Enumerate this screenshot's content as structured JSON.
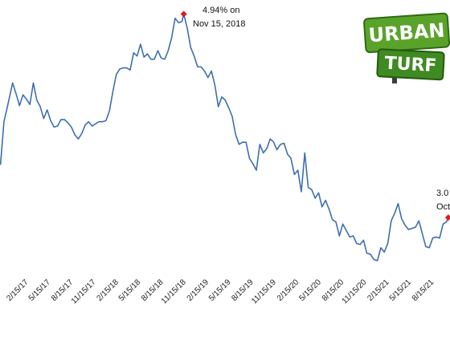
{
  "chart_data": {
    "type": "line",
    "x": [
      "2016-11-03",
      "2016-11-17",
      "2016-12-01",
      "2016-12-22",
      "2017-01-05",
      "2017-01-19",
      "2017-02-02",
      "2017-02-16",
      "2017-03-02",
      "2017-03-16",
      "2017-03-30",
      "2017-04-13",
      "2017-04-27",
      "2017-05-11",
      "2017-05-25",
      "2017-06-08",
      "2017-06-22",
      "2017-07-06",
      "2017-07-20",
      "2017-08-03",
      "2017-08-17",
      "2017-08-31",
      "2017-09-14",
      "2017-09-28",
      "2017-10-12",
      "2017-10-26",
      "2017-11-09",
      "2017-11-22",
      "2017-12-07",
      "2017-12-21",
      "2018-01-04",
      "2018-01-18",
      "2018-02-01",
      "2018-02-15",
      "2018-03-01",
      "2018-03-15",
      "2018-03-29",
      "2018-04-12",
      "2018-04-26",
      "2018-05-10",
      "2018-05-24",
      "2018-06-07",
      "2018-06-21",
      "2018-07-05",
      "2018-07-19",
      "2018-08-02",
      "2018-08-16",
      "2018-08-30",
      "2018-09-13",
      "2018-09-27",
      "2018-10-11",
      "2018-10-25",
      "2018-11-08",
      "2018-11-15",
      "2018-11-29",
      "2018-12-13",
      "2018-12-27",
      "2019-01-10",
      "2019-01-24",
      "2019-02-07",
      "2019-02-21",
      "2019-03-07",
      "2019-03-21",
      "2019-04-04",
      "2019-04-18",
      "2019-05-02",
      "2019-05-16",
      "2019-05-30",
      "2019-06-13",
      "2019-06-27",
      "2019-07-11",
      "2019-07-25",
      "2019-08-08",
      "2019-08-22",
      "2019-09-05",
      "2019-09-19",
      "2019-10-03",
      "2019-10-17",
      "2019-10-31",
      "2019-11-14",
      "2019-11-27",
      "2019-12-12",
      "2019-12-26",
      "2020-01-09",
      "2020-01-23",
      "2020-02-06",
      "2020-02-20",
      "2020-03-05",
      "2020-03-19",
      "2020-04-02",
      "2020-04-16",
      "2020-04-30",
      "2020-05-14",
      "2020-05-28",
      "2020-06-11",
      "2020-06-25",
      "2020-07-09",
      "2020-07-23",
      "2020-08-06",
      "2020-08-20",
      "2020-09-03",
      "2020-09-17",
      "2020-10-01",
      "2020-10-15",
      "2020-10-29",
      "2020-11-12",
      "2020-11-25",
      "2020-12-10",
      "2020-12-24",
      "2021-01-07",
      "2021-01-21",
      "2021-02-04",
      "2021-02-18",
      "2021-03-04",
      "2021-03-18",
      "2021-04-01",
      "2021-04-15",
      "2021-04-29",
      "2021-05-13",
      "2021-05-27",
      "2021-06-10",
      "2021-06-24",
      "2021-07-08",
      "2021-07-22",
      "2021-08-05",
      "2021-08-19",
      "2021-09-02",
      "2021-09-16",
      "2021-09-30",
      "2021-10-14",
      "2021-10-21"
    ],
    "series": [
      {
        "color": "#3d6fb0",
        "values": [
          3.54,
          3.94,
          4.08,
          4.3,
          4.2,
          4.09,
          4.19,
          4.15,
          4.1,
          4.3,
          4.14,
          4.08,
          3.97,
          4.05,
          3.95,
          3.89,
          3.9,
          3.96,
          3.96,
          3.93,
          3.89,
          3.82,
          3.78,
          3.83,
          3.91,
          3.94,
          3.9,
          3.92,
          3.94,
          3.94,
          3.95,
          4.04,
          4.22,
          4.38,
          4.43,
          4.44,
          4.44,
          4.42,
          4.58,
          4.55,
          4.66,
          4.54,
          4.57,
          4.52,
          4.52,
          4.6,
          4.53,
          4.52,
          4.6,
          4.72,
          4.9,
          4.86,
          4.87,
          4.94,
          4.81,
          4.63,
          4.55,
          4.45,
          4.45,
          4.41,
          4.35,
          4.41,
          4.28,
          4.08,
          4.17,
          4.14,
          4.07,
          3.99,
          3.82,
          3.73,
          3.75,
          3.75,
          3.6,
          3.55,
          3.49,
          3.73,
          3.65,
          3.69,
          3.78,
          3.75,
          3.68,
          3.73,
          3.74,
          3.64,
          3.6,
          3.45,
          3.49,
          3.29,
          3.65,
          3.33,
          3.31,
          3.23,
          3.28,
          3.15,
          3.21,
          3.13,
          3.03,
          3.01,
          2.88,
          2.99,
          2.93,
          2.87,
          2.88,
          2.81,
          2.8,
          2.84,
          2.72,
          2.71,
          2.66,
          2.65,
          2.77,
          2.73,
          2.81,
          3.02,
          3.09,
          3.18,
          3.04,
          2.98,
          2.94,
          2.95,
          2.96,
          3.02,
          2.9,
          2.78,
          2.77,
          2.86,
          2.87,
          2.86,
          2.99,
          3.01,
          3.05
        ]
      }
    ],
    "marker_color": "#e0191f",
    "xlim": [
      "2016-11-01",
      "2021-10-28"
    ],
    "ylim": [
      2.5,
      5.1
    ],
    "xticks": [
      {
        "value": "2017-02-15",
        "label": "2/15/17"
      },
      {
        "value": "2017-05-15",
        "label": "5/15/17"
      },
      {
        "value": "2017-08-15",
        "label": "8/15/17"
      },
      {
        "value": "2017-11-15",
        "label": "11/15/17"
      },
      {
        "value": "2018-02-15",
        "label": "2/15/18"
      },
      {
        "value": "2018-05-15",
        "label": "5/15/18"
      },
      {
        "value": "2018-08-15",
        "label": "8/15/18"
      },
      {
        "value": "2018-11-15",
        "label": "11/15/18"
      },
      {
        "value": "2019-02-15",
        "label": "2/15/19"
      },
      {
        "value": "2019-05-15",
        "label": "5/15/19"
      },
      {
        "value": "2019-08-15",
        "label": "8/15/19"
      },
      {
        "value": "2019-11-15",
        "label": "11/15/19"
      },
      {
        "value": "2020-02-15",
        "label": "2/15/20"
      },
      {
        "value": "2020-05-15",
        "label": "5/15/20"
      },
      {
        "value": "2020-08-15",
        "label": "8/15/20"
      },
      {
        "value": "2020-11-15",
        "label": "11/15/20"
      },
      {
        "value": "2021-02-15",
        "label": "2/15/21"
      },
      {
        "value": "2021-05-15",
        "label": "5/15/21"
      },
      {
        "value": "2021-08-15",
        "label": "8/15/21"
      }
    ],
    "annotations": [
      {
        "lines": [
          "4.94% on",
          "Nov 15, 2018"
        ]
      },
      {
        "lines": [
          "3.0",
          "Oct"
        ]
      }
    ]
  },
  "logo": {
    "top": "URBAN",
    "bottom": "TURF"
  }
}
